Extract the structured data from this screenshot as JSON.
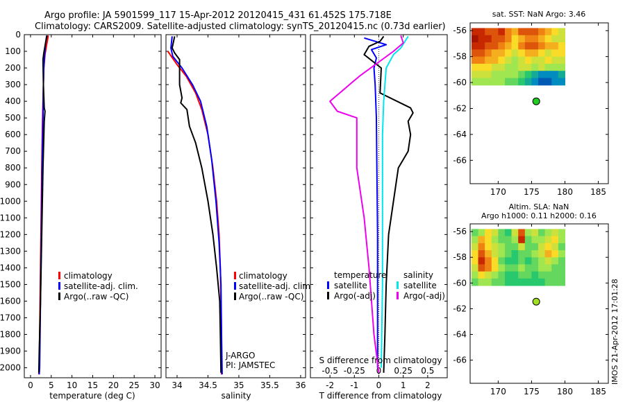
{
  "title_line1": "Argo profile: JA 5901599_117 15-Apr-2012 20120415_431 61.452S 175.718E",
  "title_line2": "Climatology: CARS2009. Satellite-adjusted climatology: synTS_20120415.nc (0.73d earlier)",
  "timestamp": "IMOS 21-Apr-2012 17:01:28",
  "colors": {
    "climatology": "#ff0000",
    "satellite": "#0000ff",
    "argo": "#000000",
    "sat_salinity": "#00e5ee",
    "argo_salinity": "#ee00ee"
  },
  "chart_data": [
    {
      "type": "line",
      "id": "temperature",
      "xlabel": "temperature (deg C)",
      "xlim": [
        -1.5,
        31.5
      ],
      "xticks": [
        0,
        5,
        10,
        15,
        20,
        25,
        30
      ],
      "ylim": [
        0,
        2060
      ],
      "yticks": [
        0,
        100,
        200,
        300,
        400,
        500,
        600,
        700,
        800,
        900,
        1000,
        1100,
        1200,
        1300,
        1400,
        1500,
        1600,
        1700,
        1800,
        1900,
        2000
      ],
      "legend": [
        "climatology",
        "satellite-adj. clim.",
        "Argo(..raw -QC)"
      ],
      "series": [
        {
          "name": "climatology",
          "color": "#ff0000",
          "points": [
            [
              4.3,
              5
            ],
            [
              3.9,
              60
            ],
            [
              3.5,
              120
            ],
            [
              3.2,
              200
            ],
            [
              3.1,
              300
            ],
            [
              2.9,
              500
            ],
            [
              2.7,
              800
            ],
            [
              2.5,
              1200
            ],
            [
              2.3,
              1600
            ],
            [
              2.1,
              2000
            ],
            [
              2.0,
              2040
            ]
          ]
        },
        {
          "name": "satellite-adj. clim.",
          "color": "#0000ff",
          "points": [
            [
              3.9,
              5
            ],
            [
              3.6,
              60
            ],
            [
              3.4,
              120
            ],
            [
              3.2,
              200
            ],
            [
              3.1,
              300
            ],
            [
              3.0,
              500
            ],
            [
              2.8,
              800
            ],
            [
              2.6,
              1200
            ],
            [
              2.4,
              1600
            ],
            [
              2.2,
              2000
            ],
            [
              2.1,
              2040
            ]
          ]
        },
        {
          "name": "Argo(..raw -QC)",
          "color": "#000000",
          "points": [
            [
              4.0,
              5
            ],
            [
              3.7,
              40
            ],
            [
              3.2,
              110
            ],
            [
              3.0,
              150
            ],
            [
              3.1,
              300
            ],
            [
              3.3,
              440
            ],
            [
              3.5,
              460
            ],
            [
              3.3,
              520
            ],
            [
              3.0,
              800
            ],
            [
              2.7,
              1200
            ],
            [
              2.4,
              1600
            ],
            [
              2.1,
              1900
            ],
            [
              2.0,
              2030
            ]
          ]
        }
      ]
    },
    {
      "type": "line",
      "id": "salinity",
      "xlabel": "salinity",
      "xlim": [
        33.82,
        36.08
      ],
      "xticks": [
        34,
        34.5,
        35,
        35.5,
        36
      ],
      "xticklabels": [
        "34",
        "34.5",
        "35",
        "35.5",
        "36"
      ],
      "ylim": [
        0,
        2060
      ],
      "legend": [
        "climatology",
        "satellite-adj. clim.",
        "Argo(..raw -QC)"
      ],
      "annotations": [
        "J-ARGO",
        "PI: JAMSTEC"
      ],
      "series": [
        {
          "name": "climatology",
          "color": "#ff0000",
          "points": [
            [
              33.85,
              100
            ],
            [
              34.0,
              180
            ],
            [
              34.15,
              250
            ],
            [
              34.3,
              350
            ],
            [
              34.4,
              450
            ],
            [
              34.5,
              600
            ],
            [
              34.58,
              800
            ],
            [
              34.64,
              1000
            ],
            [
              34.68,
              1200
            ],
            [
              34.7,
              1400
            ],
            [
              34.71,
              1600
            ],
            [
              34.72,
              1800
            ],
            [
              34.72,
              2040
            ]
          ]
        },
        {
          "name": "satellite-adj. clim.",
          "color": "#0000ff",
          "points": [
            [
              33.92,
              10
            ],
            [
              33.9,
              80
            ],
            [
              33.93,
              130
            ],
            [
              34.08,
              200
            ],
            [
              34.25,
              300
            ],
            [
              34.38,
              400
            ],
            [
              34.48,
              550
            ],
            [
              34.56,
              750
            ],
            [
              34.63,
              1000
            ],
            [
              34.68,
              1250
            ],
            [
              34.71,
              1500
            ],
            [
              34.72,
              1800
            ],
            [
              34.73,
              2040
            ]
          ]
        },
        {
          "name": "Argo(..raw -QC)",
          "color": "#000000",
          "points": [
            [
              33.96,
              10
            ],
            [
              33.92,
              80
            ],
            [
              33.96,
              110
            ],
            [
              34.04,
              150
            ],
            [
              34.04,
              300
            ],
            [
              34.08,
              380
            ],
            [
              34.06,
              410
            ],
            [
              34.16,
              450
            ],
            [
              34.2,
              550
            ],
            [
              34.3,
              650
            ],
            [
              34.4,
              800
            ],
            [
              34.5,
              1000
            ],
            [
              34.58,
              1200
            ],
            [
              34.64,
              1400
            ],
            [
              34.69,
              1600
            ],
            [
              34.7,
              1800
            ],
            [
              34.71,
              2030
            ]
          ]
        }
      ]
    },
    {
      "type": "line",
      "id": "difference",
      "xlabel_top": "S difference from climatology",
      "xlabel": "T difference from climatology",
      "xlim": [
        -2.8,
        2.8
      ],
      "xticks": [
        -2,
        -1,
        0,
        1,
        2
      ],
      "top_ticks": [
        -0.5,
        -0.25,
        0,
        0.25,
        0.5
      ],
      "top_ticklabels": [
        "-0.5",
        "-0.25",
        "0",
        "0.25",
        "0.5"
      ],
      "top_scale": 4,
      "ylim": [
        0,
        2060
      ],
      "legend_left_title": "temperature",
      "legend_left": [
        "satellite",
        "Argo(-adj)"
      ],
      "legend_right_title": "salinity",
      "legend_right": [
        "satellite",
        "Argo(-adj)"
      ],
      "series": [
        {
          "name": "temperature satellite",
          "color": "#0000ff",
          "points": [
            [
              -0.6,
              20
            ],
            [
              0.3,
              60
            ],
            [
              -0.3,
              90
            ],
            [
              -0.1,
              140
            ],
            [
              -0.2,
              200
            ],
            [
              -0.15,
              300
            ],
            [
              -0.1,
              500
            ],
            [
              -0.08,
              800
            ],
            [
              -0.05,
              1200
            ],
            [
              -0.05,
              1600
            ],
            [
              -0.05,
              2000
            ]
          ]
        },
        {
          "name": "temperature Argo(-adj)",
          "color": "#000000",
          "points": [
            [
              0.2,
              10
            ],
            [
              0.05,
              40
            ],
            [
              -0.4,
              70
            ],
            [
              -0.6,
              120
            ],
            [
              0.1,
              200
            ],
            [
              0.05,
              350
            ],
            [
              1.3,
              440
            ],
            [
              1.4,
              470
            ],
            [
              1.2,
              520
            ],
            [
              1.3,
              600
            ],
            [
              1.2,
              700
            ],
            [
              0.8,
              800
            ],
            [
              0.6,
              1000
            ],
            [
              0.4,
              1200
            ],
            [
              0.3,
              1500
            ],
            [
              0.25,
              1800
            ],
            [
              0.2,
              2030
            ]
          ]
        },
        {
          "name": "salinity satellite",
          "color": "#00e5ee",
          "points": [
            [
              1.2,
              10
            ],
            [
              0.9,
              80
            ],
            [
              0.6,
              120
            ],
            [
              0.3,
              200
            ],
            [
              0.2,
              400
            ],
            [
              0.15,
              600
            ],
            [
              0.15,
              1000
            ],
            [
              0.15,
              1500
            ],
            [
              0.12,
              1800
            ],
            [
              0.1,
              2000
            ]
          ]
        },
        {
          "name": "salinity Argo(-adj)",
          "color": "#ee00ee",
          "points": [
            [
              0.9,
              5
            ],
            [
              1.0,
              50
            ],
            [
              0.6,
              100
            ],
            [
              -0.8,
              250
            ],
            [
              -2.0,
              400
            ],
            [
              -1.7,
              460
            ],
            [
              -0.9,
              500
            ],
            [
              -0.9,
              800
            ],
            [
              -0.6,
              1100
            ],
            [
              -0.4,
              1400
            ],
            [
              -0.2,
              1800
            ],
            [
              0.0,
              2030
            ]
          ]
        }
      ]
    },
    {
      "type": "heatmap",
      "id": "sst_map",
      "title": "sat. SST: NaN Argo: 3.46",
      "xlim": [
        165.8,
        186.5
      ],
      "xticks": [
        170,
        175,
        180,
        185
      ],
      "ylim": [
        -67.8,
        -55.4
      ],
      "yticks": [
        -56,
        -58,
        -60,
        -62,
        -64,
        -66
      ],
      "grid_extent": {
        "lon": [
          166,
          180
        ],
        "lat": [
          -60.2,
          -55.8
        ]
      },
      "grid": [
        [
          2,
          2,
          3,
          3,
          2,
          4,
          5,
          3,
          3,
          3,
          4,
          5,
          6,
          7
        ],
        [
          1,
          2,
          2,
          3,
          3,
          4,
          6,
          5,
          4,
          4,
          5,
          6,
          7,
          7
        ],
        [
          2,
          2,
          3,
          3,
          4,
          5,
          6,
          4,
          3,
          3,
          4,
          5,
          5,
          6
        ],
        [
          3,
          3,
          4,
          5,
          5,
          6,
          7,
          6,
          5,
          5,
          6,
          7,
          6,
          6
        ],
        [
          4,
          4,
          5,
          5,
          6,
          7,
          8,
          7,
          6,
          7,
          7,
          6,
          7,
          7
        ],
        [
          6,
          6,
          6,
          7,
          7,
          8,
          8,
          7,
          7,
          8,
          7,
          8,
          8,
          8
        ],
        [
          7,
          7,
          7,
          8,
          8,
          8,
          8,
          9,
          10,
          11,
          12,
          12,
          12,
          11
        ],
        [
          8,
          8,
          8,
          8,
          8,
          9,
          9,
          10,
          11,
          12,
          13,
          13,
          12,
          12
        ]
      ],
      "argo_point": [
        175.7,
        -61.45
      ],
      "marker_color": "#22cc22"
    },
    {
      "type": "heatmap",
      "id": "sla_map",
      "title": "Altim. SLA: NaN",
      "subtitle": "Argo h1000: 0.11 h2000: 0.16",
      "xlim": [
        165.8,
        186.5
      ],
      "xticks": [
        170,
        175,
        180,
        185
      ],
      "ylim": [
        -67.8,
        -55.4
      ],
      "yticks": [
        -56,
        -58,
        -60,
        -62,
        -64,
        -66
      ],
      "grid_extent": {
        "lon": [
          166,
          180
        ],
        "lat": [
          -60.2,
          -55.8
        ]
      },
      "grid": [
        [
          9,
          8,
          6,
          7,
          9,
          10,
          7,
          3,
          8,
          7,
          9,
          8,
          7,
          8
        ],
        [
          8,
          5,
          6,
          8,
          9,
          9,
          8,
          2,
          9,
          8,
          8,
          7,
          6,
          8
        ],
        [
          7,
          4,
          6,
          7,
          8,
          9,
          9,
          7,
          9,
          9,
          7,
          6,
          7,
          9
        ],
        [
          6,
          3,
          5,
          7,
          8,
          9,
          10,
          9,
          9,
          8,
          7,
          5,
          6,
          8
        ],
        [
          6,
          2,
          4,
          6,
          9,
          10,
          10,
          9,
          10,
          9,
          8,
          7,
          8,
          9
        ],
        [
          7,
          3,
          4,
          6,
          8,
          9,
          9,
          8,
          9,
          9,
          8,
          8,
          9,
          9
        ],
        [
          8,
          6,
          7,
          8,
          9,
          10,
          10,
          9,
          9,
          10,
          9,
          9,
          9,
          9
        ],
        [
          9,
          8,
          8,
          9,
          9,
          10,
          10,
          10,
          10,
          10,
          10,
          9,
          9,
          9
        ]
      ],
      "argo_point": [
        175.7,
        -61.45
      ],
      "marker_color": "#a0e020"
    }
  ]
}
